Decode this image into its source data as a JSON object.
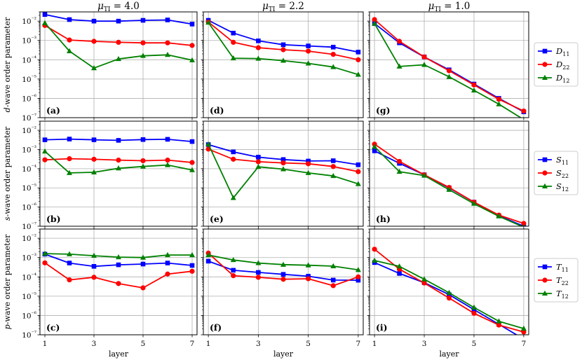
{
  "figure": {
    "column_titles": [
      "μTI = 4.0",
      "μTI = 2.2",
      "μTI = 1.0"
    ],
    "xlabel": "layer",
    "x_ticks": [
      1,
      3,
      5,
      7
    ],
    "y_ticks": [
      "10⁻⁷",
      "10⁻⁶",
      "10⁻⁵",
      "10⁻⁴",
      "10⁻³",
      "10⁻²"
    ],
    "row_ylabels": [
      "d-wave order parameter",
      "s-wave order parameter",
      "p-wave order parameter"
    ],
    "panel_labels": [
      "(a)",
      "(d)",
      "(g)",
      "(b)",
      "(e)",
      "(h)",
      "(c)",
      "(f)",
      "(i)"
    ],
    "legends": [
      [
        "D11",
        "D22",
        "D12"
      ],
      [
        "S11",
        "S22",
        "S12"
      ],
      [
        "T11",
        "T22",
        "T12"
      ]
    ]
  },
  "colors": {
    "series_11": "#0000ff",
    "series_22": "#ff0000",
    "series_12": "#008000",
    "grid": "#b0b0b0"
  },
  "chart_data": {
    "type": "line",
    "log_scale_y": true,
    "ylim": [
      1e-07,
      0.03
    ],
    "xlim": [
      0.8,
      7.2
    ],
    "x": [
      1,
      2,
      3,
      4,
      5,
      6,
      7
    ],
    "panels": [
      {
        "label": "(a)",
        "row": 0,
        "col": 0,
        "series": [
          {
            "name": "D11",
            "values": [
              0.022,
              0.012,
              0.01,
              0.01,
              0.011,
              0.0115,
              0.007
            ]
          },
          {
            "name": "D22",
            "values": [
              0.006,
              0.00105,
              0.0009,
              0.0008,
              0.00075,
              0.00075,
              0.00055
            ]
          },
          {
            "name": "D12",
            "values": [
              0.008,
              0.00028,
              3.7e-05,
              0.00011,
              0.00016,
              0.00018,
              9.5e-05
            ]
          }
        ]
      },
      {
        "label": "(d)",
        "row": 0,
        "col": 1,
        "series": [
          {
            "name": "D11",
            "values": [
              0.011,
              0.0024,
              0.00095,
              0.0006,
              0.00052,
              0.00045,
              0.00025
            ]
          },
          {
            "name": "D22",
            "values": [
              0.009,
              0.0008,
              0.00042,
              0.00033,
              0.00028,
              0.00019,
              0.0001
            ]
          },
          {
            "name": "D12",
            "values": [
              0.0085,
              0.00012,
              0.000115,
              9e-05,
              6.5e-05,
              4.2e-05,
              1.7e-05
            ]
          }
        ]
      },
      {
        "label": "(g)",
        "row": 0,
        "col": 2,
        "series": [
          {
            "name": "D11",
            "values": [
              0.0075,
              0.00075,
              0.00014,
              3e-05,
              5.5e-06,
              1e-06,
              2e-07
            ]
          },
          {
            "name": "D22",
            "values": [
              0.012,
              0.0009,
              0.00014,
              2.7e-05,
              5e-06,
              9e-07,
              2.2e-07
            ]
          },
          {
            "name": "D12",
            "values": [
              0.0075,
              4.5e-05,
              5.5e-05,
              1.3e-05,
              2.6e-06,
              5e-07,
              8e-08
            ]
          }
        ]
      },
      {
        "label": "(b)",
        "row": 1,
        "col": 0,
        "series": [
          {
            "name": "S11",
            "values": [
              0.0032,
              0.0035,
              0.0032,
              0.003,
              0.0033,
              0.0034,
              0.0026
            ]
          },
          {
            "name": "S22",
            "values": [
              0.00029,
              0.00033,
              0.00031,
              0.00028,
              0.00026,
              0.00028,
              0.00021
            ]
          },
          {
            "name": "S12",
            "values": [
              0.0008,
              6e-05,
              6.5e-05,
              0.000105,
              0.00013,
              0.000155,
              8.5e-05
            ]
          }
        ]
      },
      {
        "label": "(e)",
        "row": 1,
        "col": 1,
        "series": [
          {
            "name": "S11",
            "values": [
              0.0018,
              0.00075,
              0.0004,
              0.0003,
              0.00025,
              0.00026,
              0.00016
            ]
          },
          {
            "name": "S22",
            "values": [
              0.00105,
              0.00031,
              0.00023,
              0.0002,
              0.00018,
              0.00013,
              7e-05
            ]
          },
          {
            "name": "S12",
            "values": [
              0.0019,
              3e-06,
              0.000125,
              9.5e-05,
              6e-05,
              4.2e-05,
              1.6e-05
            ]
          }
        ]
      },
      {
        "label": "(h)",
        "row": 1,
        "col": 2,
        "series": [
          {
            "name": "S11",
            "values": [
              0.00085,
              0.00019,
              4.8e-05,
              1e-05,
              1.8e-06,
              3.5e-07,
              1e-07
            ]
          },
          {
            "name": "S22",
            "values": [
              0.0019,
              0.00024,
              4.8e-05,
              1.05e-05,
              1.8e-06,
              3.8e-07,
              1.4e-07
            ]
          },
          {
            "name": "S12",
            "values": [
              0.0014,
              7e-05,
              4.4e-05,
              8e-06,
              1.5e-06,
              3.3e-07,
              9e-08
            ]
          }
        ]
      },
      {
        "label": "(c)",
        "row": 2,
        "col": 0,
        "series": [
          {
            "name": "T11",
            "values": [
              0.0015,
              0.00052,
              0.00035,
              0.00042,
              0.00046,
              0.00052,
              0.00039
            ]
          },
          {
            "name": "T22",
            "values": [
              0.00053,
              7e-05,
              9.5e-05,
              4.5e-05,
              2.7e-05,
              0.00014,
              0.000195
            ]
          },
          {
            "name": "T12",
            "values": [
              0.0016,
              0.0015,
              0.00125,
              0.00105,
              0.001,
              0.00135,
              0.00135
            ]
          }
        ]
      },
      {
        "label": "(f)",
        "row": 2,
        "col": 1,
        "series": [
          {
            "name": "T11",
            "values": [
              0.00065,
              0.00022,
              0.00017,
              0.000135,
              0.000108,
              6.8e-05,
              6.7e-05
            ]
          },
          {
            "name": "T22",
            "values": [
              0.0017,
              0.000115,
              9.5e-05,
              7.5e-05,
              8e-05,
              3.5e-05,
              0.0001
            ]
          },
          {
            "name": "T12",
            "values": [
              0.00135,
              0.00075,
              0.00052,
              0.00043,
              0.0004,
              0.00036,
              0.00023
            ]
          }
        ]
      },
      {
        "label": "(i)",
        "row": 2,
        "col": 2,
        "series": [
          {
            "name": "T11",
            "values": [
              0.00055,
              0.00015,
              5e-05,
              1.2e-05,
              2e-06,
              3.5e-07,
              6e-08
            ]
          },
          {
            "name": "T22",
            "values": [
              0.0027,
              0.00025,
              4.8e-05,
              8e-06,
              1.3e-06,
              3.2e-07,
              1.4e-07
            ]
          },
          {
            "name": "T12",
            "values": [
              0.0007,
              0.00035,
              7.5e-05,
              1.5e-05,
              2.6e-06,
              5e-07,
              2.1e-07
            ]
          }
        ]
      }
    ]
  }
}
